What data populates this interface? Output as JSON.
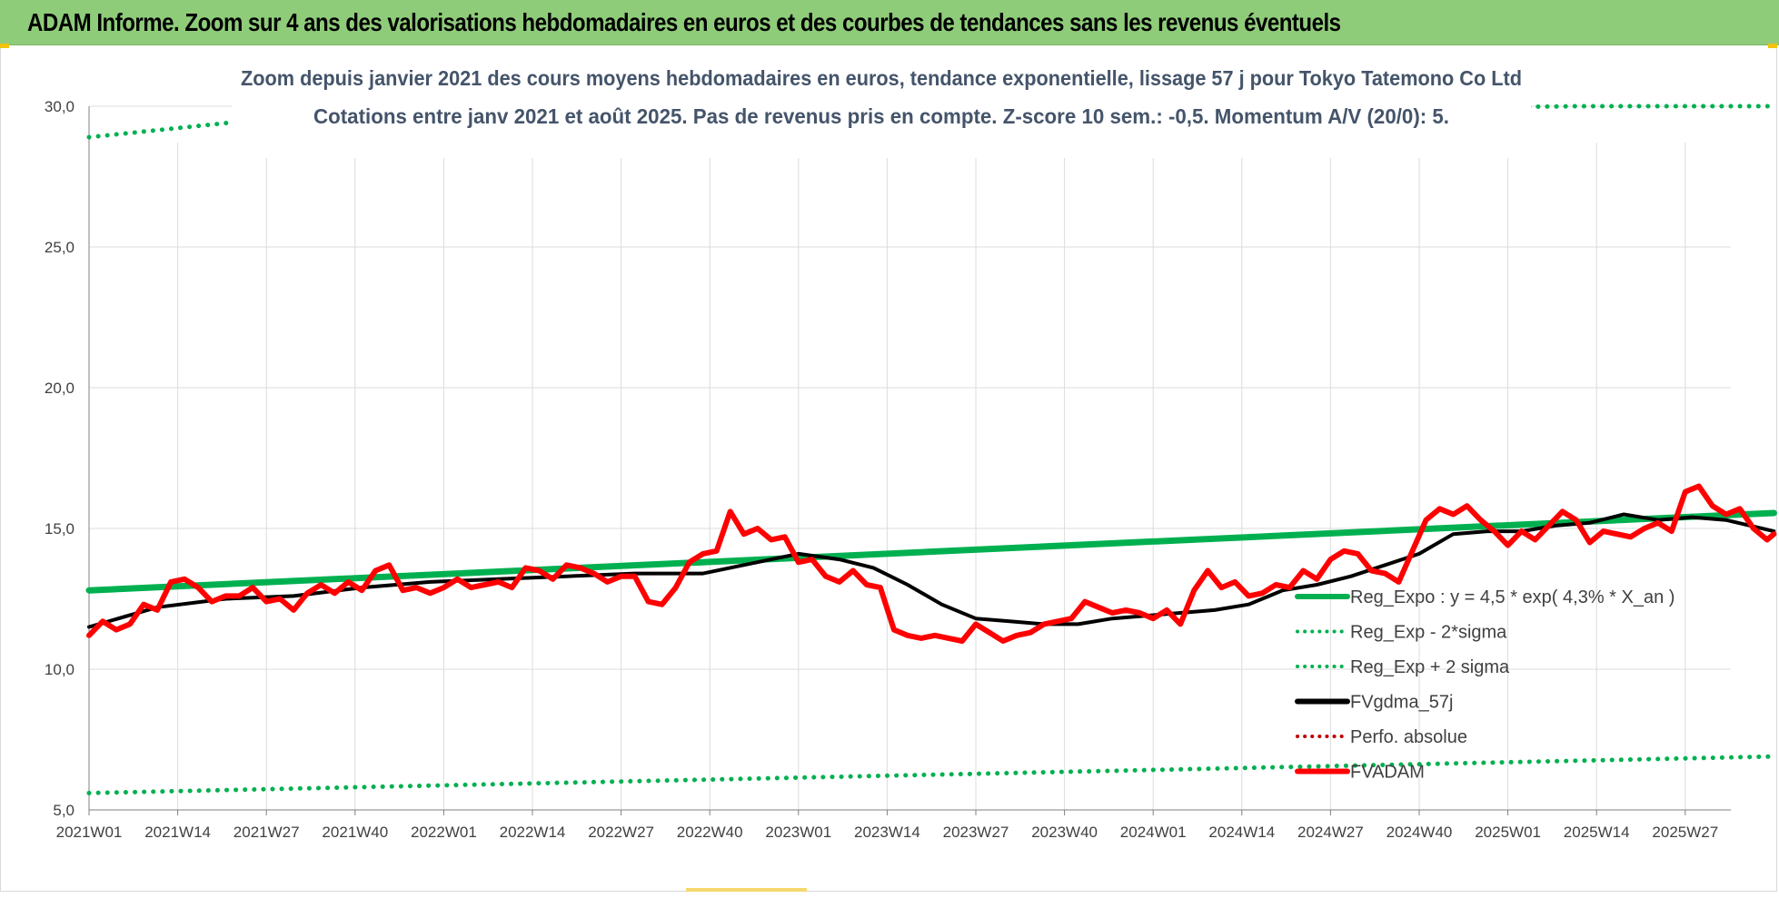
{
  "header": {
    "title": "ADAM Informe. Zoom sur 4 ans des valorisations hebdomadaires en euros et des courbes de tendances sans les revenus éventuels"
  },
  "colors": {
    "banner": "#8fcc7a",
    "reg_expo": "#00b050",
    "fvgdma": "#000000",
    "fvadam": "#ff0000",
    "perfo": "#c00000",
    "grid": "#dcdcdc"
  },
  "chart_data": {
    "type": "line",
    "title": "Zoom depuis janvier 2021 des cours moyens hebdomadaires en euros, tendance exponentielle, lissage 57 j pour Tokyo Tatemono Co Ltd",
    "subtitle": "Cotations entre janv 2021 et août 2025.  Pas de revenus pris en compte. Z-score 10 sem.: -0,5. Momentum A/V (20/0): 5.",
    "xlabel": "",
    "ylabel": "",
    "ylim": [
      5.0,
      30.0
    ],
    "yticks": [
      "30,0",
      "25,0",
      "20,0",
      "15,0",
      "10,0",
      "5,0"
    ],
    "ytick_values": [
      30,
      25,
      20,
      15,
      10,
      5
    ],
    "xticks": [
      "2021W01",
      "2021W14",
      "2021W27",
      "2021W40",
      "2022W01",
      "2022W14",
      "2022W27",
      "2022W40",
      "2023W01",
      "2023W14",
      "2023W27",
      "2023W40",
      "2024W01",
      "2024W14",
      "2024W27",
      "2024W40",
      "2025W01",
      "2025W14",
      "2025W27"
    ],
    "grid": true,
    "legend_position": "right",
    "weeks_total": 248,
    "series": [
      {
        "name": "Reg_Expo : y = 4,5 * exp( 4,3% *  X_an )",
        "style": "solid-thick",
        "color": "#00b050",
        "x": [
          0,
          247
        ],
        "y": [
          12.8,
          15.55
        ]
      },
      {
        "name": "Reg_Exp - 2*sigma",
        "style": "dotted",
        "color": "#00b050",
        "x": [
          0,
          247
        ],
        "y": [
          5.6,
          6.9
        ]
      },
      {
        "name": "Reg_Exp + 2 sigma",
        "style": "dotted",
        "color": "#00b050",
        "x": [
          0,
          22,
          218,
          247
        ],
        "y": [
          28.9,
          29.45,
          30.0,
          30.0
        ]
      },
      {
        "name": "FVgdma_57j",
        "style": "solid",
        "color": "#000000",
        "x": [
          0,
          10,
          20,
          30,
          40,
          50,
          60,
          70,
          80,
          90,
          100,
          104,
          110,
          115,
          120,
          125,
          130,
          135,
          140,
          145,
          150,
          155,
          160,
          165,
          170,
          175,
          180,
          185,
          190,
          195,
          200,
          205,
          210,
          215,
          220,
          225,
          230,
          235,
          240,
          247
        ],
        "y": [
          11.5,
          12.2,
          12.5,
          12.6,
          12.9,
          13.1,
          13.2,
          13.3,
          13.4,
          13.4,
          13.9,
          14.1,
          13.9,
          13.6,
          13.0,
          12.3,
          11.8,
          11.7,
          11.6,
          11.6,
          11.8,
          11.9,
          12.0,
          12.1,
          12.3,
          12.8,
          13.0,
          13.3,
          13.7,
          14.1,
          14.8,
          14.9,
          14.9,
          15.1,
          15.2,
          15.5,
          15.3,
          15.4,
          15.3,
          14.9
        ]
      },
      {
        "name": "Perfo. absolue",
        "style": "dotted",
        "color": "#c00000",
        "x": [],
        "y": []
      },
      {
        "name": "FVADAM",
        "style": "solid-thick",
        "color": "#ff0000",
        "x": [
          0,
          2,
          4,
          6,
          8,
          10,
          12,
          14,
          16,
          18,
          20,
          22,
          24,
          26,
          28,
          30,
          32,
          34,
          36,
          38,
          40,
          42,
          44,
          46,
          48,
          50,
          52,
          54,
          56,
          58,
          60,
          62,
          64,
          66,
          68,
          70,
          72,
          74,
          76,
          78,
          80,
          82,
          84,
          86,
          88,
          90,
          92,
          94,
          96,
          98,
          100,
          102,
          104,
          106,
          108,
          110,
          112,
          114,
          116,
          118,
          120,
          122,
          124,
          126,
          128,
          130,
          132,
          134,
          136,
          138,
          140,
          142,
          144,
          146,
          148,
          150,
          152,
          154,
          156,
          158,
          160,
          162,
          164,
          166,
          168,
          170,
          172,
          174,
          176,
          178,
          180,
          182,
          184,
          186,
          188,
          190,
          192,
          194,
          196,
          198,
          200,
          202,
          204,
          206,
          208,
          210,
          212,
          214,
          216,
          218,
          220,
          222,
          224,
          226,
          228,
          230,
          232,
          234,
          236,
          238,
          240,
          242,
          244,
          246,
          247
        ],
        "y": [
          11.2,
          11.7,
          11.4,
          11.6,
          12.3,
          12.1,
          13.1,
          13.2,
          12.9,
          12.4,
          12.6,
          12.6,
          12.9,
          12.4,
          12.5,
          12.1,
          12.7,
          13.0,
          12.7,
          13.1,
          12.8,
          13.5,
          13.7,
          12.8,
          12.9,
          12.7,
          12.9,
          13.2,
          12.9,
          13.0,
          13.1,
          12.9,
          13.6,
          13.5,
          13.2,
          13.7,
          13.6,
          13.4,
          13.1,
          13.3,
          13.3,
          12.4,
          12.3,
          12.9,
          13.8,
          14.1,
          14.2,
          15.6,
          14.8,
          15.0,
          14.6,
          14.7,
          13.8,
          13.9,
          13.3,
          13.1,
          13.5,
          13.0,
          12.9,
          11.4,
          11.2,
          11.1,
          11.2,
          11.1,
          11.0,
          11.6,
          11.3,
          11.0,
          11.2,
          11.3,
          11.6,
          11.7,
          11.8,
          12.4,
          12.2,
          12.0,
          12.1,
          12.0,
          11.8,
          12.1,
          11.6,
          12.8,
          13.5,
          12.9,
          13.1,
          12.6,
          12.7,
          13.0,
          12.9,
          13.5,
          13.2,
          13.9,
          14.2,
          14.1,
          13.5,
          13.4,
          13.1,
          14.2,
          15.3,
          15.7,
          15.5,
          15.8,
          15.3,
          14.9,
          14.4,
          14.9,
          14.6,
          15.1,
          15.6,
          15.3,
          14.5,
          14.9,
          14.8,
          14.7,
          15.0,
          15.2,
          14.9,
          16.3,
          16.5,
          15.8,
          15.5,
          15.7,
          15.0,
          14.6,
          14.8
        ]
      }
    ]
  }
}
